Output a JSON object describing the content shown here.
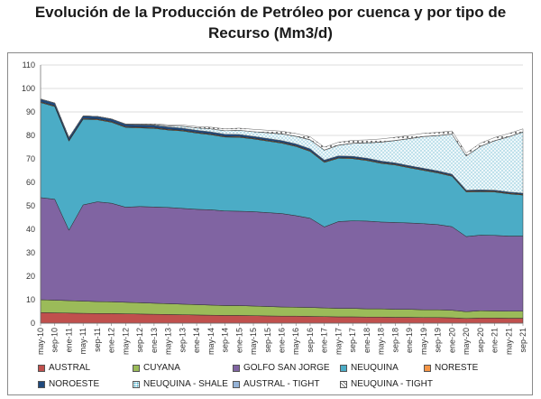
{
  "title_line1": "Evolución de la Producción de Petróleo por cuenca y por tipo de",
  "title_line2": "Recurso (Mm3/d)",
  "chart_data": {
    "type": "area",
    "stacked": true,
    "title": "Evolución de la Producción de Petróleo por cuenca y por tipo de Recurso (Mm3/d)",
    "ylim": [
      0,
      110
    ],
    "yticks": [
      0,
      10,
      20,
      30,
      40,
      50,
      60,
      70,
      80,
      90,
      100,
      110
    ],
    "grid": true,
    "legend_position": "bottom",
    "x": [
      "may-10",
      "sep-10",
      "ene-11",
      "may-11",
      "sep-11",
      "ene-12",
      "may-12",
      "sep-12",
      "ene-13",
      "may-13",
      "sep-13",
      "ene-14",
      "may-14",
      "sep-14",
      "ene-15",
      "may-15",
      "sep-15",
      "ene-16",
      "may-16",
      "sep-16",
      "ene-17",
      "may-17",
      "sep-17",
      "ene-18",
      "may-18",
      "sep-18",
      "ene-19",
      "may-19",
      "sep-19",
      "ene-20",
      "may-20",
      "sep-20",
      "ene-21",
      "may-21",
      "sep-21"
    ],
    "series": [
      {
        "name": "AUSTRAL",
        "color": "#c0504d",
        "pattern": "solid",
        "values": [
          4.5,
          4.4,
          4.3,
          4.2,
          4.1,
          4.1,
          4.0,
          3.9,
          3.8,
          3.7,
          3.6,
          3.5,
          3.4,
          3.3,
          3.3,
          3.2,
          3.1,
          3.0,
          3.0,
          2.9,
          2.8,
          2.7,
          2.7,
          2.6,
          2.6,
          2.5,
          2.5,
          2.4,
          2.4,
          2.3,
          2.0,
          2.2,
          2.2,
          2.1,
          2.1
        ]
      },
      {
        "name": "CUYANA",
        "color": "#9bbb59",
        "pattern": "solid",
        "values": [
          5.5,
          5.4,
          5.3,
          5.2,
          5.1,
          5.0,
          4.9,
          4.8,
          4.7,
          4.6,
          4.5,
          4.4,
          4.3,
          4.2,
          4.2,
          4.1,
          4.0,
          3.9,
          3.8,
          3.8,
          3.7,
          3.6,
          3.6,
          3.5,
          3.5,
          3.4,
          3.4,
          3.3,
          3.3,
          3.2,
          2.9,
          3.1,
          3.0,
          3.0,
          3.0
        ]
      },
      {
        "name": "GOLFO SAN JORGE",
        "color": "#8064a2",
        "pattern": "solid",
        "values": [
          43.5,
          43.0,
          30.0,
          41.0,
          42.5,
          42.0,
          40.5,
          41.0,
          41.0,
          41.0,
          40.8,
          40.6,
          40.6,
          40.3,
          40.2,
          40.2,
          40.0,
          39.8,
          39.0,
          38.0,
          34.5,
          37.0,
          37.3,
          37.4,
          37.0,
          37.0,
          36.8,
          36.7,
          36.3,
          35.6,
          32.0,
          32.2,
          32.2,
          32.0,
          32.0
        ]
      },
      {
        "name": "NEUQUINA",
        "color": "#4bacc6",
        "pattern": "solid",
        "values": [
          40.5,
          39.5,
          38.0,
          36.5,
          35.0,
          34.5,
          34.0,
          33.5,
          33.5,
          33.0,
          33.0,
          32.5,
          32.0,
          31.5,
          31.5,
          31.0,
          30.5,
          30.0,
          29.5,
          28.5,
          27.5,
          27.0,
          26.5,
          25.8,
          25.0,
          24.5,
          23.5,
          22.7,
          22.0,
          21.5,
          19.0,
          18.5,
          18.5,
          18.0,
          17.5
        ]
      },
      {
        "name": "NORESTE",
        "color": "#f79646",
        "pattern": "solid",
        "values": [
          0.3,
          0.3,
          0.3,
          0.3,
          0.3,
          0.3,
          0.3,
          0.3,
          0.3,
          0.3,
          0.3,
          0.3,
          0.3,
          0.3,
          0.3,
          0.3,
          0.3,
          0.3,
          0.3,
          0.3,
          0.3,
          0.3,
          0.3,
          0.3,
          0.3,
          0.3,
          0.3,
          0.3,
          0.3,
          0.3,
          0.3,
          0.3,
          0.3,
          0.3,
          0.3
        ]
      },
      {
        "name": "NOROESTE",
        "color": "#1f497d",
        "pattern": "solid",
        "values": [
          1.2,
          1.2,
          1.2,
          1.1,
          1.1,
          1.1,
          1.0,
          1.0,
          1.0,
          1.0,
          0.9,
          0.9,
          0.9,
          0.9,
          0.9,
          0.8,
          0.8,
          0.8,
          0.8,
          0.8,
          0.7,
          0.7,
          0.7,
          0.7,
          0.7,
          0.6,
          0.6,
          0.6,
          0.6,
          0.6,
          0.5,
          0.5,
          0.5,
          0.5,
          0.5
        ]
      },
      {
        "name": "NEUQUINA - SHALE",
        "color": "#4bacc6",
        "pattern": "dots",
        "values": [
          0.0,
          0.0,
          0.0,
          0.0,
          0.0,
          0.0,
          0.1,
          0.2,
          0.3,
          0.5,
          0.8,
          1.0,
          1.3,
          1.5,
          1.8,
          2.0,
          2.4,
          2.8,
          3.2,
          3.8,
          4.2,
          4.5,
          5.5,
          6.5,
          8.0,
          9.5,
          11.5,
          13.5,
          15.0,
          17.0,
          14.5,
          18.5,
          21.0,
          23.5,
          26.0
        ]
      },
      {
        "name": "AUSTRAL -  TIGHT",
        "color": "#95b3d7",
        "pattern": "solid",
        "values": [
          0.0,
          0.0,
          0.0,
          0.0,
          0.0,
          0.0,
          0.0,
          0.0,
          0.0,
          0.0,
          0.0,
          0.0,
          0.0,
          0.0,
          0.0,
          0.0,
          0.1,
          0.1,
          0.1,
          0.1,
          0.1,
          0.1,
          0.1,
          0.1,
          0.1,
          0.1,
          0.1,
          0.1,
          0.1,
          0.1,
          0.1,
          0.1,
          0.1,
          0.1,
          0.1
        ]
      },
      {
        "name": "NEUQUINA - TIGHT",
        "color": "#c0504d",
        "pattern": "crosses",
        "values": [
          0.0,
          0.0,
          0.0,
          0.0,
          0.0,
          0.0,
          0.1,
          0.2,
          0.3,
          0.4,
          0.5,
          0.6,
          0.7,
          0.8,
          0.9,
          1.0,
          1.0,
          1.1,
          1.1,
          1.2,
          1.2,
          1.2,
          1.2,
          1.2,
          1.3,
          1.3,
          1.3,
          1.3,
          1.3,
          1.3,
          1.2,
          1.3,
          1.3,
          1.3,
          1.3
        ]
      }
    ]
  }
}
